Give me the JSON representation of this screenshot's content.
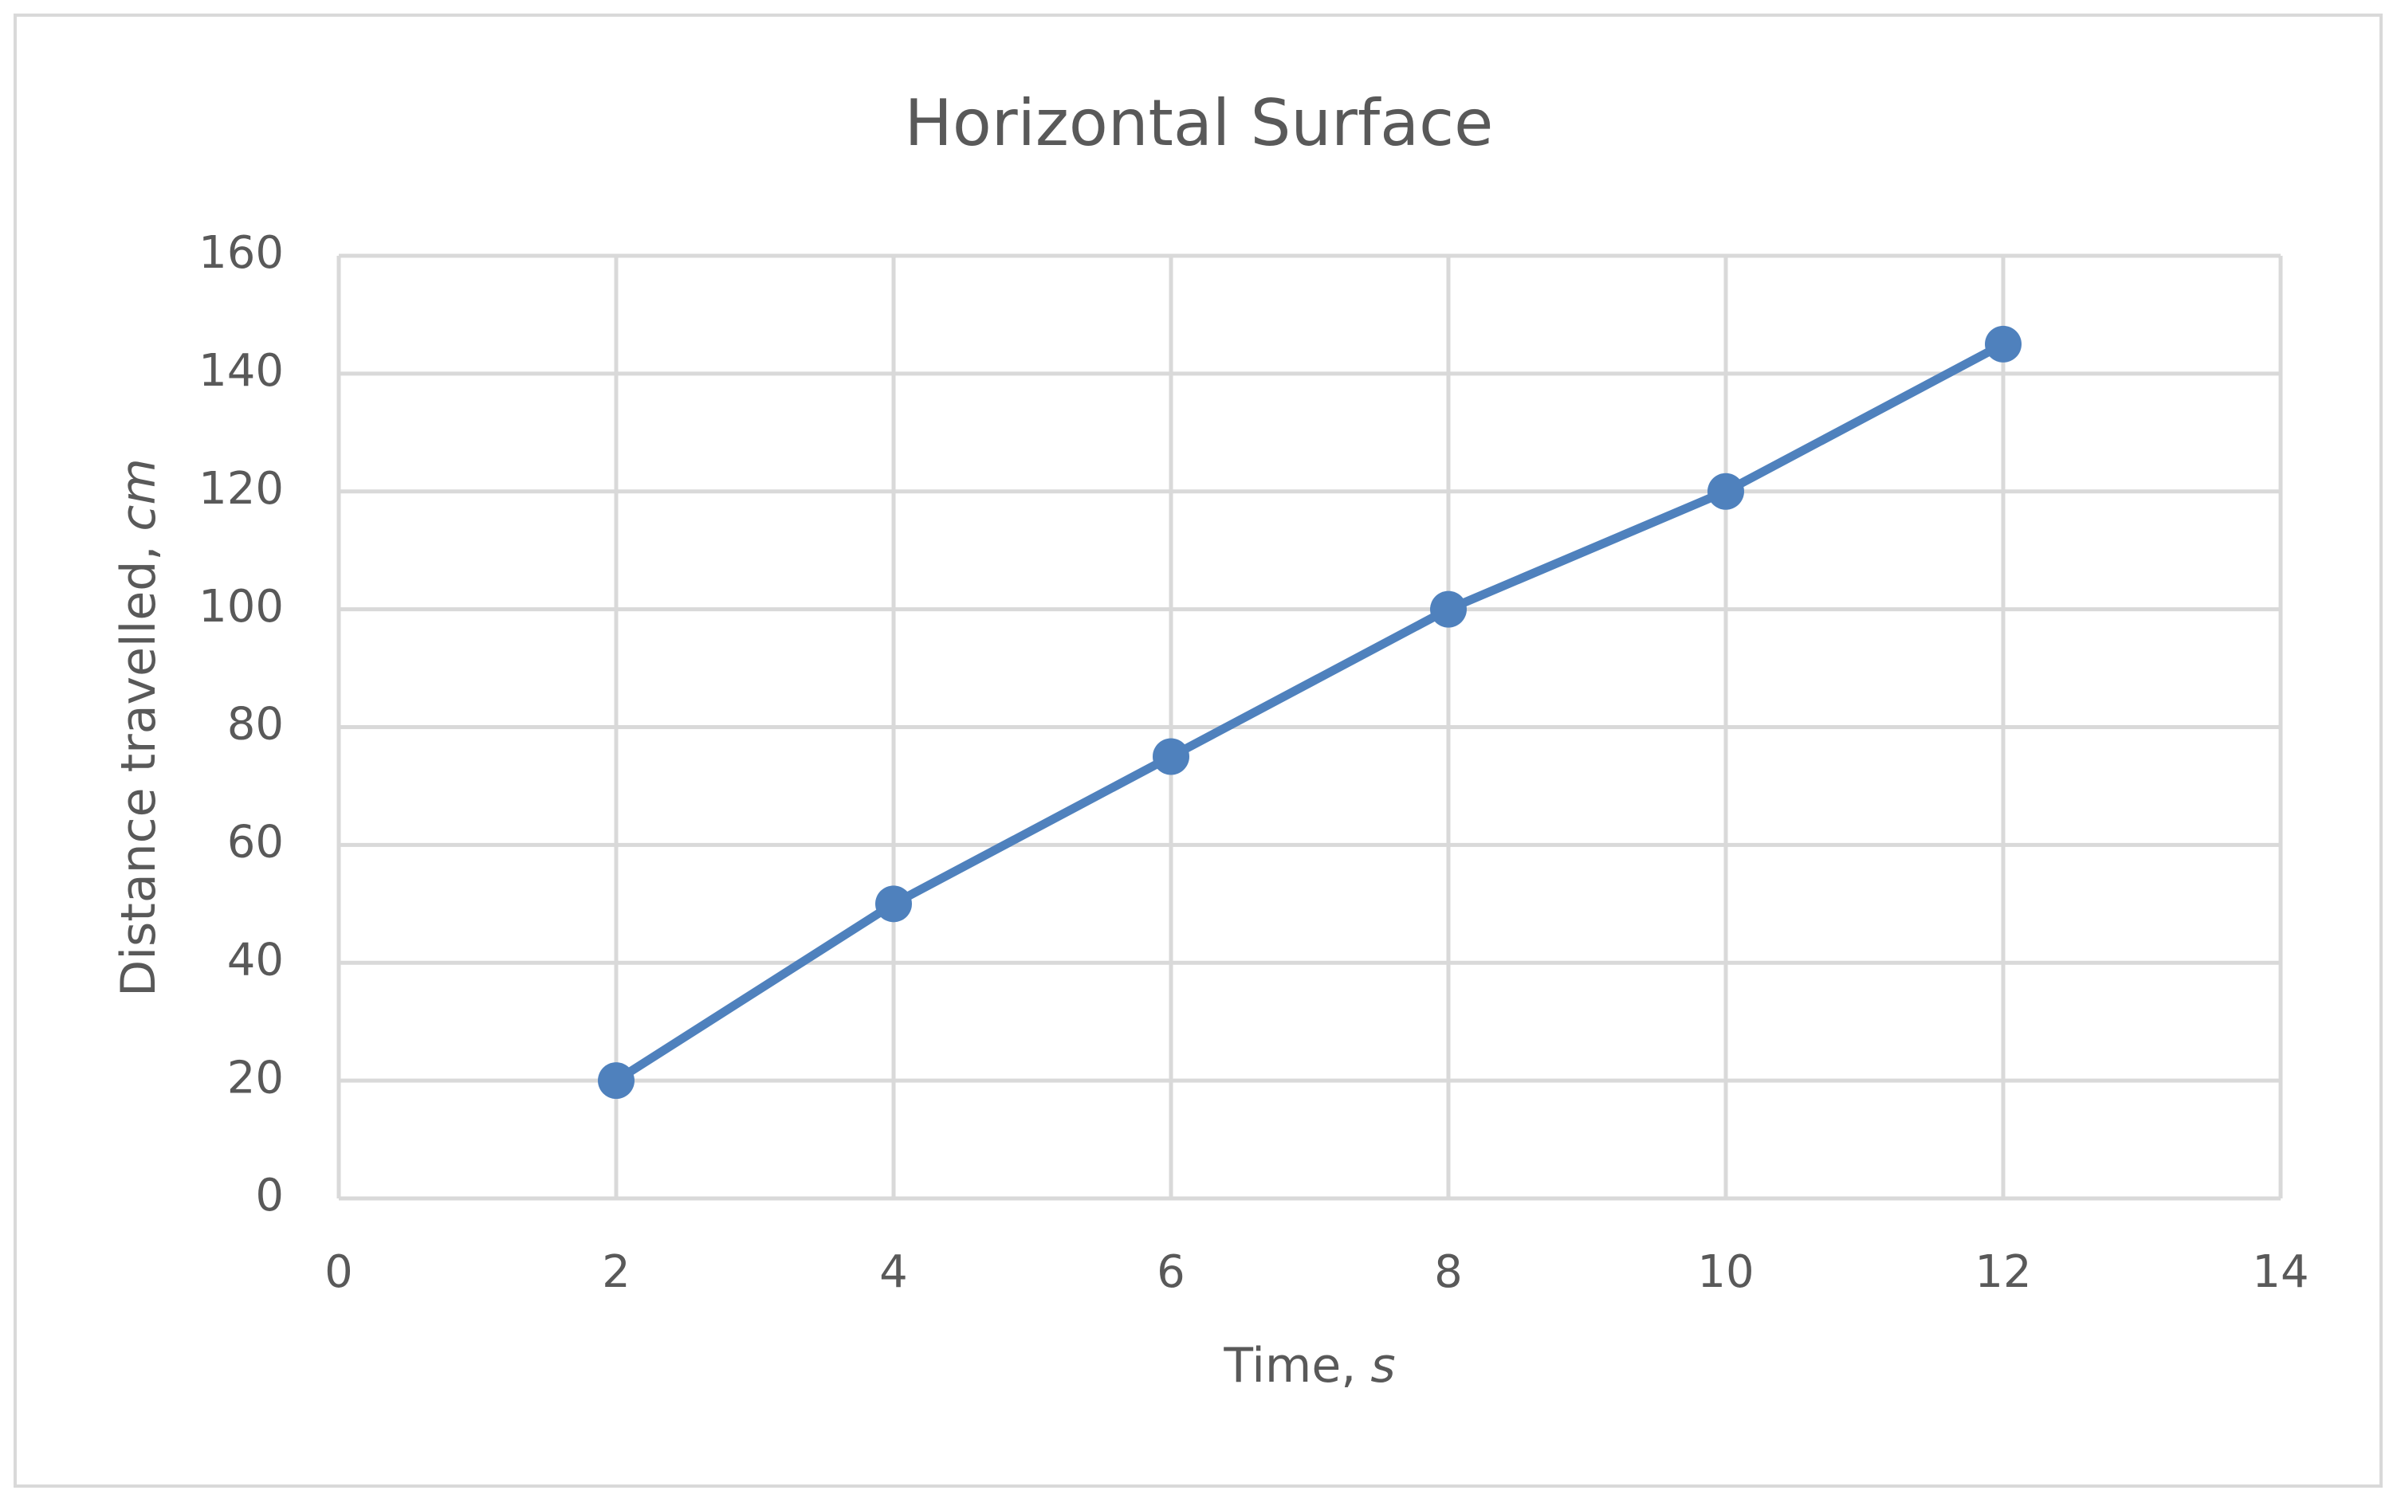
{
  "chart_data": {
    "type": "line",
    "title": "Horizontal Surface",
    "xlabel": "Time,",
    "xlabel_unit": "s",
    "ylabel": "Distance travelled,",
    "ylabel_unit": "cm",
    "x": [
      2,
      4,
      6,
      8,
      10,
      12
    ],
    "series": [
      {
        "name": "Distance travelled",
        "color": "#4f81bd",
        "values": [
          20,
          50,
          75,
          100,
          120,
          145
        ]
      }
    ],
    "xlim": [
      0,
      14
    ],
    "xticks": [
      0,
      2,
      4,
      6,
      8,
      10,
      12,
      14
    ],
    "ylim": [
      0,
      160
    ],
    "yticks": [
      0,
      20,
      40,
      60,
      80,
      100,
      120,
      140,
      160
    ],
    "grid": true
  }
}
